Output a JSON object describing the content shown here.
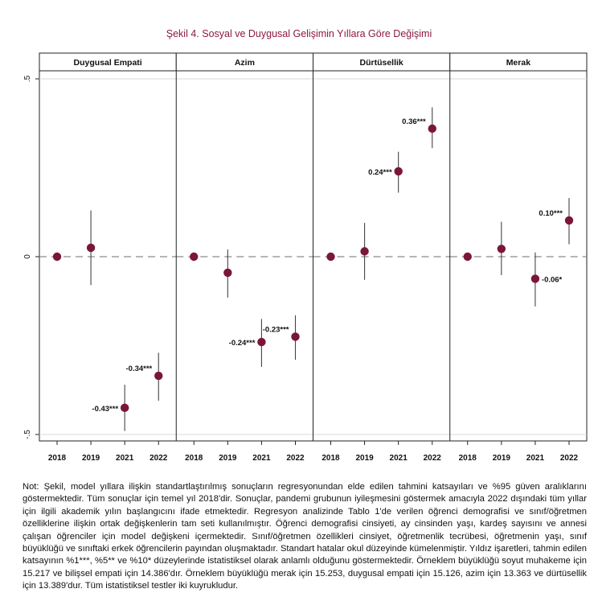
{
  "chart_data": {
    "type": "scatter",
    "title": "Şekil 4. Sosyal ve Duygusal Gelişimin Yıllara Göre Değişimi",
    "categories": [
      "2018",
      "2019",
      "2021",
      "2022"
    ],
    "ylim": [
      -0.5,
      0.5
    ],
    "y_ticks": [
      {
        "value": 0.5,
        "label": ".5"
      },
      {
        "value": 0,
        "label": "0"
      },
      {
        "value": -0.5,
        "label": "-.5"
      }
    ],
    "reference_line": 0,
    "grid": true,
    "marker_color": "#7a1735",
    "panels": [
      {
        "name": "Duygusal Empati",
        "points": [
          {
            "x": "2018",
            "y": 0.0,
            "lo": null,
            "hi": null,
            "label": ""
          },
          {
            "x": "2019",
            "y": 0.025,
            "lo": -0.08,
            "hi": 0.13,
            "label": ""
          },
          {
            "x": "2021",
            "y": -0.425,
            "lo": -0.49,
            "hi": -0.36,
            "label": "-0.43***"
          },
          {
            "x": "2022",
            "y": -0.335,
            "lo": -0.405,
            "hi": -0.27,
            "label": "-0.34***"
          }
        ]
      },
      {
        "name": "Azim",
        "points": [
          {
            "x": "2018",
            "y": 0.0,
            "lo": null,
            "hi": null,
            "label": ""
          },
          {
            "x": "2019",
            "y": -0.045,
            "lo": -0.115,
            "hi": 0.02,
            "label": ""
          },
          {
            "x": "2021",
            "y": -0.24,
            "lo": -0.31,
            "hi": -0.175,
            "label": "-0.24***"
          },
          {
            "x": "2022",
            "y": -0.225,
            "lo": -0.29,
            "hi": -0.165,
            "label": "-0.23***"
          }
        ]
      },
      {
        "name": "Dürtüsellik",
        "points": [
          {
            "x": "2018",
            "y": 0.0,
            "lo": null,
            "hi": null,
            "label": ""
          },
          {
            "x": "2019",
            "y": 0.015,
            "lo": -0.065,
            "hi": 0.095,
            "label": ""
          },
          {
            "x": "2021",
            "y": 0.24,
            "lo": 0.18,
            "hi": 0.295,
            "label": "0.24***"
          },
          {
            "x": "2022",
            "y": 0.36,
            "lo": 0.305,
            "hi": 0.42,
            "label": "0.36***"
          }
        ]
      },
      {
        "name": "Merak",
        "points": [
          {
            "x": "2018",
            "y": 0.0,
            "lo": null,
            "hi": null,
            "label": ""
          },
          {
            "x": "2019",
            "y": 0.022,
            "lo": -0.052,
            "hi": 0.098,
            "label": ""
          },
          {
            "x": "2021",
            "y": -0.062,
            "lo": -0.14,
            "hi": 0.012,
            "label": "-0.06*"
          },
          {
            "x": "2022",
            "y": 0.102,
            "lo": 0.035,
            "hi": 0.165,
            "label": "0.10***"
          }
        ]
      }
    ]
  },
  "note": "Not: Şekil, model yıllara ilişkin standartlaştırılmış sonuçların regresyonundan elde edilen tahmini katsayıları ve %95 güven aralıklarını göstermektedir. Tüm sonuçlar için temel yıl 2018'dir. Sonuçlar, pandemi grubunun iyileşmesini göstermek amacıyla 2022 dışındaki tüm yıllar için ilgili akademik yılın başlangıcını ifade etmektedir. Regresyon analizinde Tablo 1'de verilen öğrenci demografisi ve sınıf/öğretmen özelliklerine ilişkin ortak değişkenlerin tam seti kullanılmıştır. Öğrenci demografisi cinsiyeti, ay cinsinden yaşı, kardeş sayısını ve annesi çalışan öğrenciler için model değişkeni içermektedir. Sınıf/öğretmen özellikleri cinsiyet, öğretmenlik tecrübesi, öğretmenin yaşı, sınıf büyüklüğü ve sınıftaki erkek öğrencilerin payından oluşmaktadır. Standart hatalar okul düzeyinde kümelenmiştir. Yıldız işaretleri, tahmin edilen katsayının %1***, %5** ve %10* düzeylerinde istatistiksel olarak anlamlı olduğunu göstermektedir. Örneklem büyüklüğü soyut muhakeme için 15.217 ve bilişsel empati için 14.386'dır. Örneklem büyüklüğü merak için 15.253, duygusal empati için 15.126, azim için 13.363 ve dürtüsellik için 13.389'dur. Tüm istatistiksel testler iki kuyrukludur."
}
